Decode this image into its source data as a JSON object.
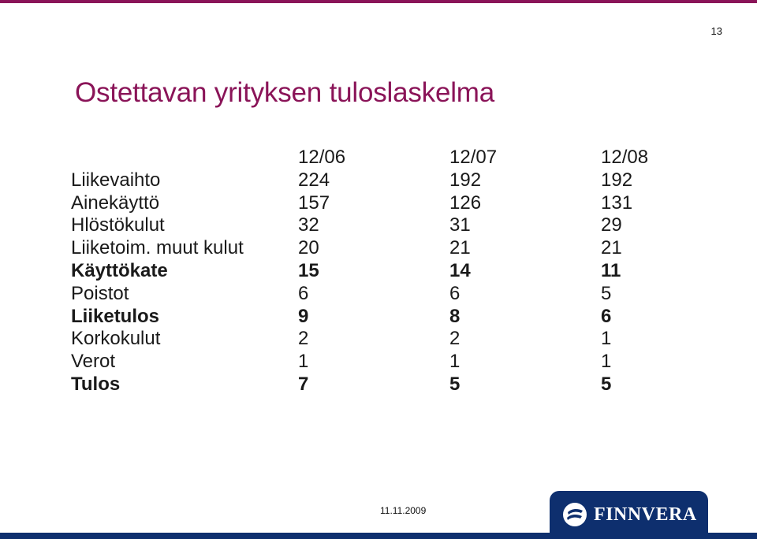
{
  "slide": {
    "number": "13",
    "title": "Ostettavan yrityksen tuloslaskelma",
    "footer_date": "11.11.2009"
  },
  "logo": {
    "text": "FINNVERA",
    "icon": "finnvera-logo-mark",
    "color": "#0e2f6e"
  },
  "accent_color": "#8a1458",
  "table": {
    "header": [
      "",
      "12/06",
      "12/07",
      "12/08"
    ],
    "rows": [
      {
        "label": "Liikevaihto",
        "values": [
          "224",
          "192",
          "192"
        ],
        "bold": false
      },
      {
        "label": "Ainekäyttö",
        "values": [
          "157",
          "126",
          "131"
        ],
        "bold": false
      },
      {
        "label": "Hlöstökulut",
        "values": [
          "32",
          "31",
          "29"
        ],
        "bold": false
      },
      {
        "label": "Liiketoim. muut kulut",
        "values": [
          "20",
          "21",
          "21"
        ],
        "bold": false
      },
      {
        "label": "Käyttökate",
        "values": [
          "15",
          "14",
          "11"
        ],
        "bold": true
      },
      {
        "label": "Poistot",
        "values": [
          "6",
          "6",
          "5"
        ],
        "bold": false
      },
      {
        "label": "Liiketulos",
        "values": [
          "9",
          "8",
          "6"
        ],
        "bold": true
      },
      {
        "label": "Korkokulut",
        "values": [
          "2",
          "2",
          "1"
        ],
        "bold": false
      },
      {
        "label": "Verot",
        "values": [
          "1",
          "1",
          "1"
        ],
        "bold": false
      },
      {
        "label": "Tulos",
        "values": [
          "7",
          "5",
          "5"
        ],
        "bold": true
      }
    ]
  }
}
